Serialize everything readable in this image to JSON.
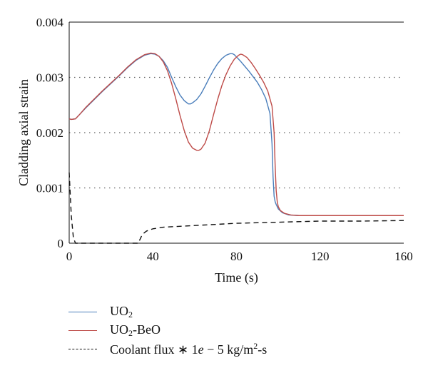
{
  "chart_data": {
    "type": "line",
    "title": "",
    "xlabel": "Time (s)",
    "ylabel": "Cladding axial strain",
    "xlim": [
      0,
      160
    ],
    "ylim": [
      0,
      0.004
    ],
    "x_ticks": [
      0,
      40,
      80,
      120,
      160
    ],
    "x_tick_labels": [
      "0",
      "40",
      "80",
      "120",
      "160"
    ],
    "y_ticks": [
      0,
      0.001,
      0.002,
      0.003,
      0.004
    ],
    "y_tick_labels": [
      "0",
      "0.001",
      "0.002",
      "0.003",
      "0.004"
    ],
    "grid": "horizontal dotted",
    "legend_position": "below",
    "series": [
      {
        "name": "UO2",
        "color": "#4a7ebb",
        "style": "solid",
        "x": [
          0,
          1,
          3,
          5,
          8,
          12,
          16,
          20,
          24,
          28,
          32,
          36,
          39,
          41,
          43,
          45,
          47,
          49,
          51,
          53,
          55,
          57,
          58,
          59,
          61,
          63,
          65,
          67,
          69,
          71,
          73,
          75,
          77,
          78,
          79,
          80,
          82,
          84,
          86,
          88,
          90,
          92,
          94,
          96,
          97,
          97.5,
          98,
          98.5,
          99,
          100,
          102,
          105,
          110,
          120,
          140,
          160
        ],
        "y": [
          0.00225,
          0.00224,
          0.00225,
          0.00233,
          0.00245,
          0.0026,
          0.00275,
          0.00289,
          0.00303,
          0.00318,
          0.00331,
          0.0034,
          0.00343,
          0.00342,
          0.00338,
          0.0033,
          0.00318,
          0.003,
          0.00283,
          0.00268,
          0.00258,
          0.00252,
          0.00252,
          0.00254,
          0.0026,
          0.0027,
          0.00284,
          0.00299,
          0.00313,
          0.00325,
          0.00334,
          0.0034,
          0.00343,
          0.00343,
          0.00341,
          0.00337,
          0.00329,
          0.0032,
          0.00311,
          0.00301,
          0.00291,
          0.00278,
          0.00262,
          0.00235,
          0.0018,
          0.0012,
          0.00085,
          0.00075,
          0.0007,
          0.00062,
          0.00055,
          0.00051,
          0.0005,
          0.0005,
          0.0005,
          0.0005
        ]
      },
      {
        "name": "UO2-BeO",
        "color": "#be4b48",
        "style": "solid",
        "x": [
          0,
          1,
          3,
          5,
          8,
          12,
          16,
          20,
          24,
          28,
          32,
          36,
          39,
          41,
          43,
          45,
          47,
          49,
          51,
          53,
          55,
          57,
          59,
          61,
          62,
          63,
          65,
          67,
          69,
          71,
          73,
          75,
          77,
          79,
          81,
          82,
          83,
          85,
          87,
          89,
          91,
          93,
          95,
          97,
          98,
          98.5,
          99,
          99.5,
          100,
          101,
          103,
          106,
          110,
          120,
          140,
          160
        ],
        "y": [
          0.00225,
          0.00224,
          0.00225,
          0.00233,
          0.00246,
          0.00261,
          0.00276,
          0.0029,
          0.00304,
          0.00319,
          0.00332,
          0.00341,
          0.00344,
          0.00343,
          0.00338,
          0.00328,
          0.00312,
          0.00289,
          0.00261,
          0.00231,
          0.00204,
          0.00183,
          0.00172,
          0.00168,
          0.00168,
          0.0017,
          0.00181,
          0.00203,
          0.00232,
          0.0026,
          0.00285,
          0.00305,
          0.00321,
          0.00333,
          0.0034,
          0.00342,
          0.00341,
          0.00336,
          0.00327,
          0.00316,
          0.00304,
          0.00291,
          0.00275,
          0.00248,
          0.002,
          0.0014,
          0.00095,
          0.00075,
          0.00066,
          0.00059,
          0.00054,
          0.00051,
          0.0005,
          0.0005,
          0.0005,
          0.0005
        ]
      },
      {
        "name": "Coolant flux ∗ 1e − 5 kg/m2-s",
        "color": "#111111",
        "style": "dashed",
        "x": [
          0,
          1,
          2,
          3,
          33,
          34,
          35,
          37,
          40,
          45,
          50,
          60,
          70,
          80,
          90,
          100,
          120,
          140,
          160
        ],
        "y": [
          0.00128,
          0.0005,
          0.0001,
          0.0,
          0.0,
          8e-05,
          0.00016,
          0.00022,
          0.00026,
          0.00029,
          0.0003,
          0.00032,
          0.00034,
          0.00036,
          0.00037,
          0.00038,
          0.0004,
          0.0004,
          0.00041
        ]
      }
    ]
  },
  "legend": {
    "items": [
      {
        "base": "UO",
        "sub": "2",
        "rest": ""
      },
      {
        "base": "UO",
        "sub": "2",
        "rest": "-BeO"
      },
      {
        "coef_pre": "Coolant flux ∗ 1",
        "coef_e": "e",
        "coef_post": " − 5 kg/m",
        "sup": "2",
        "tail": "-s"
      }
    ]
  }
}
